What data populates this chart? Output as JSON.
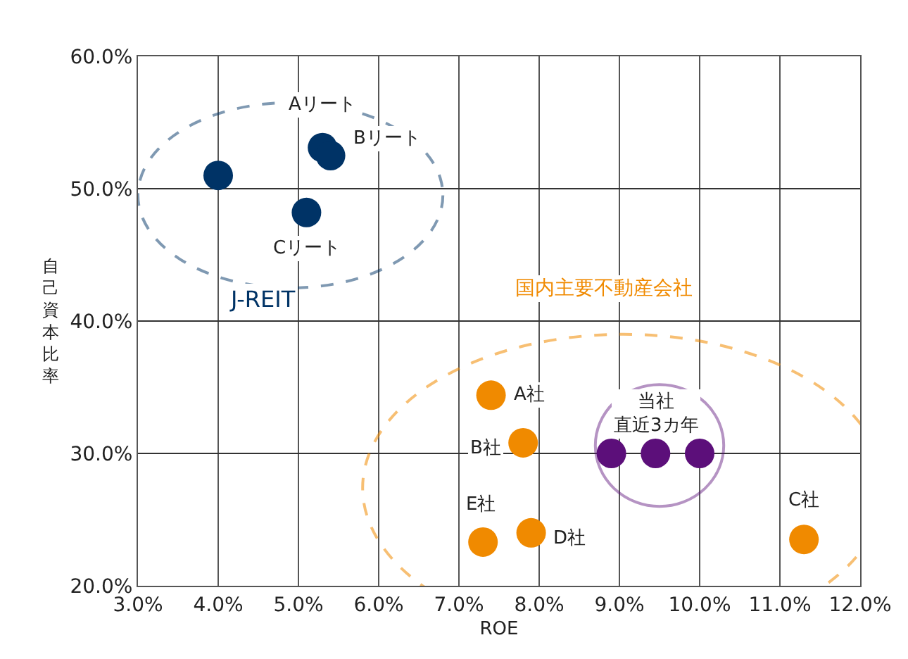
{
  "chart_data": {
    "type": "scatter",
    "xlabel": "ROE",
    "ylabel": "自己資本比率",
    "xlim": [
      3,
      12
    ],
    "ylim": [
      20,
      60
    ],
    "xticks": [
      {
        "value": 3,
        "label": "3.0%"
      },
      {
        "value": 4,
        "label": "4.0%"
      },
      {
        "value": 5,
        "label": "5.0%"
      },
      {
        "value": 6,
        "label": "6.0%"
      },
      {
        "value": 7,
        "label": "7.0%"
      },
      {
        "value": 8,
        "label": "8.0%"
      },
      {
        "value": 9,
        "label": "9.0%"
      },
      {
        "value": 10,
        "label": "10.0%"
      },
      {
        "value": 11,
        "label": "11.0%"
      },
      {
        "value": 12,
        "label": "12.0%"
      }
    ],
    "yticks": [
      {
        "value": 20,
        "label": "20.0%"
      },
      {
        "value": 30,
        "label": "30.0%"
      },
      {
        "value": 40,
        "label": "40.0%"
      },
      {
        "value": 50,
        "label": "50.0%"
      },
      {
        "value": 60,
        "label": "60.0%"
      }
    ],
    "grid": true,
    "legend": false,
    "marker": "circle",
    "series": [
      {
        "name": "J-REIT",
        "color": "#003366",
        "x": [
          4.0,
          5.3,
          5.4,
          5.1
        ],
        "values": [
          51.0,
          53.1,
          52.5,
          48.2
        ]
      },
      {
        "name": "国内主要不動産会社",
        "color": "#f08a00",
        "x": [
          7.4,
          7.8,
          7.3,
          7.9,
          11.3
        ],
        "values": [
          34.4,
          30.8,
          23.3,
          24.0,
          23.5
        ]
      },
      {
        "name": "当社直近3カ年",
        "color": "#5c0f7a",
        "x": [
          8.9,
          9.45,
          10.0
        ],
        "values": [
          30.0,
          30.0,
          30.0
        ]
      }
    ],
    "annotations": [
      {
        "text": "Aリート",
        "x": 5.3,
        "y": 53.1
      },
      {
        "text": "Bリート",
        "x": 5.4,
        "y": 52.5
      },
      {
        "text": "Cリート",
        "x": 5.1,
        "y": 48.2
      },
      {
        "text": "A社",
        "x": 7.4,
        "y": 34.4
      },
      {
        "text": "B社",
        "x": 7.8,
        "y": 30.8
      },
      {
        "text": "E社",
        "x": 7.3,
        "y": 23.3
      },
      {
        "text": "D社",
        "x": 7.9,
        "y": 24.0
      },
      {
        "text": "C社",
        "x": 11.3,
        "y": 23.5
      }
    ]
  }
}
